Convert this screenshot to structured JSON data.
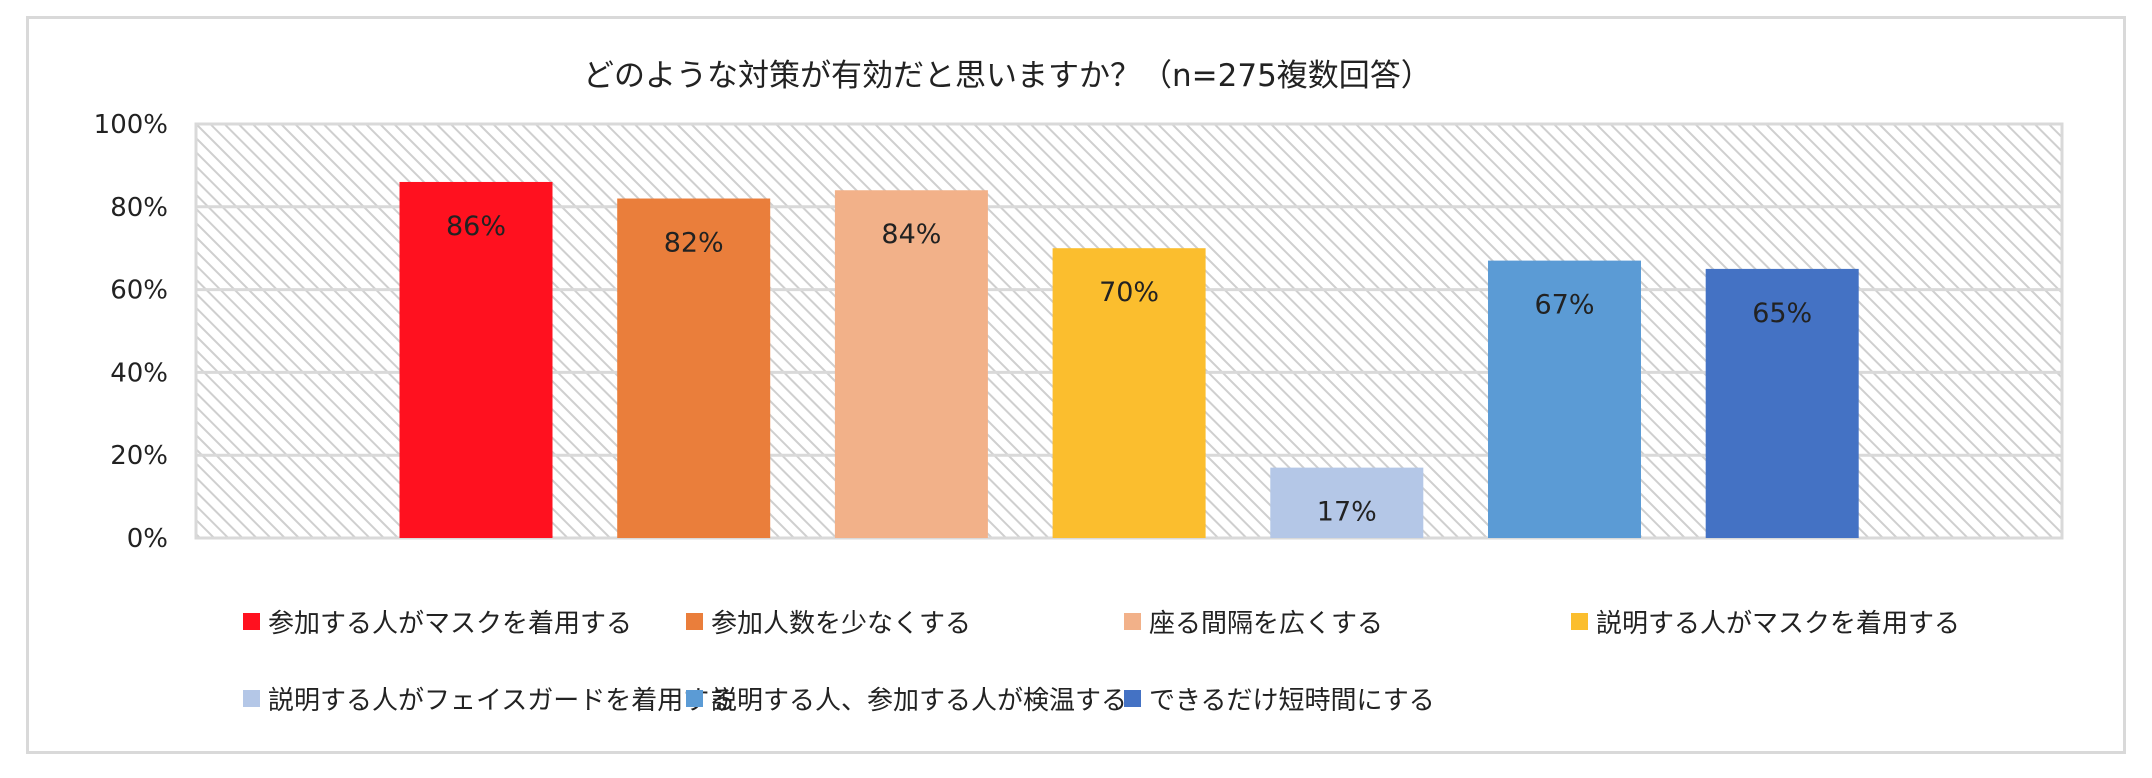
{
  "chart_data": {
    "type": "bar",
    "title": "どのような対策が有効だと思いますか？（n=275複数回答）",
    "xlabel": "",
    "ylabel": "",
    "ylim": [
      0,
      100
    ],
    "ytick_values": [
      0,
      20,
      40,
      60,
      80,
      100
    ],
    "ytick_labels": [
      "0%",
      "20%",
      "40%",
      "60%",
      "80%",
      "100%"
    ],
    "grid": true,
    "legend_position": "bottom",
    "categories": [
      "参加する人がマスクを着用する",
      "参加人数を少なくする",
      "座る間隔を広くする",
      "説明する人がマスクを着用する",
      "説明する人がフェイスガードを着用する",
      "説明する人、参加する人が検温する",
      "できるだけ短時間にする"
    ],
    "values": [
      86,
      82,
      84,
      70,
      17,
      67,
      65
    ],
    "data_labels": [
      "86%",
      "82%",
      "84%",
      "70%",
      "17%",
      "67%",
      "65%"
    ],
    "colors": [
      "#FF111F",
      "#EA7E3B",
      "#F2B189",
      "#FBBE2E",
      "#B4C7E7",
      "#5B9BD5",
      "#4472C4"
    ],
    "plot_background": "hatched"
  }
}
